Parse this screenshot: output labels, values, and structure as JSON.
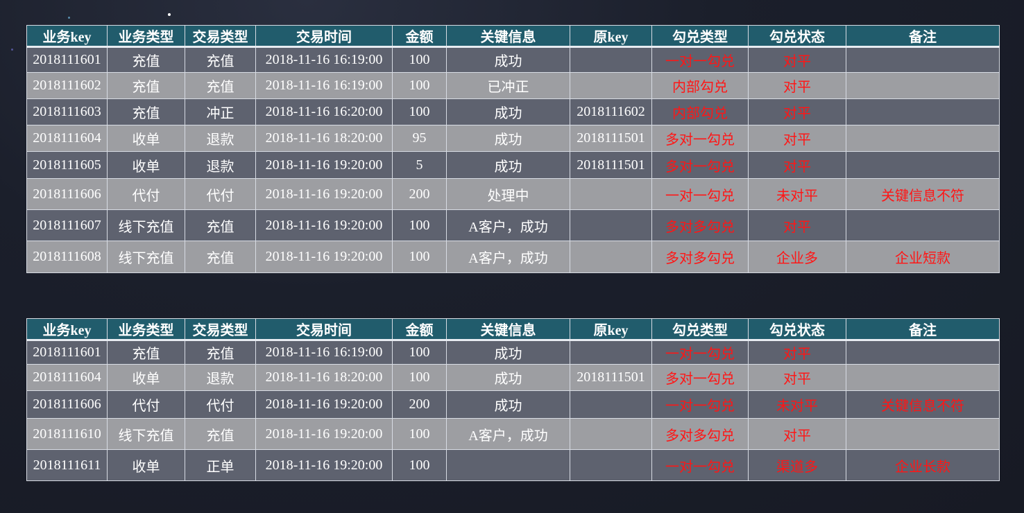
{
  "columns": [
    "业务key",
    "业务类型",
    "交易类型",
    "交易时间",
    "金额",
    "关键信息",
    "原key",
    "勾兑类型",
    "勾兑状态",
    "备注"
  ],
  "table1": {
    "rows": [
      [
        "2018111601",
        "充值",
        "充值",
        "2018-11-16 16:19:00",
        "100",
        "成功",
        "",
        "一对一勾兑",
        "对平",
        ""
      ],
      [
        "2018111602",
        "充值",
        "充值",
        "2018-11-16 16:19:00",
        "100",
        "已冲正",
        "",
        "内部勾兑",
        "对平",
        ""
      ],
      [
        "2018111603",
        "充值",
        "冲正",
        "2018-11-16 16:20:00",
        "100",
        "成功",
        "2018111602",
        "内部勾兑",
        "对平",
        ""
      ],
      [
        "2018111604",
        "收单",
        "退款",
        "2018-11-16 18:20:00",
        "95",
        "成功",
        "2018111501",
        "多对一勾兑",
        "对平",
        ""
      ],
      [
        "2018111605",
        "收单",
        "退款",
        "2018-11-16 19:20:00",
        "5",
        "成功",
        "2018111501",
        "多对一勾兑",
        "对平",
        ""
      ],
      [
        "2018111606",
        "代付",
        "代付",
        "2018-11-16 19:20:00",
        "200",
        "处理中",
        "",
        "一对一勾兑",
        "未对平",
        "关键信息不符"
      ],
      [
        "2018111607",
        "线下充值",
        "充值",
        "2018-11-16 19:20:00",
        "100",
        "A客户，成功",
        "",
        "多对多勾兑",
        "对平",
        ""
      ],
      [
        "2018111608",
        "线下充值",
        "充值",
        "2018-11-16 19:20:00",
        "100",
        "A客户，成功",
        "",
        "多对多勾兑",
        "企业多",
        "企业短款"
      ]
    ]
  },
  "table2": {
    "rows": [
      [
        "2018111601",
        "充值",
        "充值",
        "2018-11-16 16:19:00",
        "100",
        "成功",
        "",
        "一对一勾兑",
        "对平",
        ""
      ],
      [
        "2018111604",
        "收单",
        "退款",
        "2018-11-16 18:20:00",
        "100",
        "成功",
        "2018111501",
        "多对一勾兑",
        "对平",
        ""
      ],
      [
        "2018111606",
        "代付",
        "代付",
        "2018-11-16 19:20:00",
        "200",
        "成功",
        "",
        "一对一勾兑",
        "未对平",
        "关键信息不符"
      ],
      [
        "2018111610",
        "线下充值",
        "充值",
        "2018-11-16 19:20:00",
        "100",
        "A客户，成功",
        "",
        "多对多勾兑",
        "对平",
        ""
      ],
      [
        "2018111611",
        "收单",
        "正单",
        "2018-11-16 19:20:00",
        "100",
        "",
        "",
        "一对一勾兑",
        "渠道多",
        "企业长款"
      ]
    ]
  },
  "colors": {
    "header_bg": "#215c6c",
    "row_dark": "#5e626f",
    "row_light": "#9d9ea2",
    "highlight_text": "#ff1616",
    "page_bg": "#1b1f2b"
  }
}
